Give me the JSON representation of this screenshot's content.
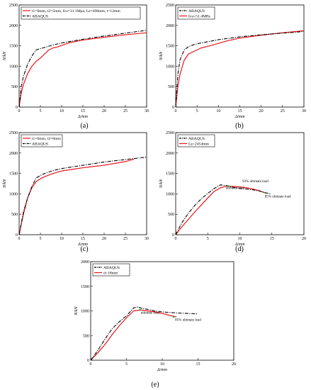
{
  "colors": {
    "experiment": "#e8141a",
    "abaqus": "#000000",
    "marker": "#1aa84a"
  },
  "chart_data": [
    {
      "caption": "(a)",
      "type": "line",
      "xlabel": "Δ/mm",
      "ylabel": "N/kN",
      "xlim": [
        0,
        30
      ],
      "ylim": [
        0,
        2500
      ],
      "xticks": [
        "0",
        "5",
        "10",
        "15",
        "20",
        "25",
        "30"
      ],
      "yticks": [
        "0",
        "500",
        "1000",
        "1500",
        "2000",
        "2500"
      ],
      "legend_position": "top-left",
      "legend": [
        "t1=6mm, t2=5mm, fcu=31.1Mpa, Le=490mm, t=12mm",
        "ABAQUS"
      ],
      "annotations": [],
      "series": [
        {
          "name": "t1=6mm, t2=5mm, fcu=31.1Mpa, Le=490mm, t=12mm",
          "style": "solid",
          "x": [
            0,
            0.5,
            1,
            2,
            3,
            4,
            5,
            6,
            7,
            8,
            9,
            10,
            12,
            15,
            20,
            25,
            30
          ],
          "y": [
            0,
            350,
            550,
            820,
            1000,
            1120,
            1200,
            1300,
            1400,
            1450,
            1470,
            1510,
            1580,
            1640,
            1710,
            1770,
            1820
          ]
        },
        {
          "name": "ABAQUS",
          "style": "dashdot",
          "x": [
            0,
            0.5,
            1,
            2,
            3,
            4,
            5,
            6,
            8,
            10,
            15,
            20,
            25,
            30
          ],
          "y": [
            0,
            500,
            750,
            1050,
            1250,
            1400,
            1430,
            1460,
            1520,
            1570,
            1660,
            1740,
            1810,
            1880
          ]
        }
      ]
    },
    {
      "caption": "(b)",
      "type": "line",
      "xlabel": "Δ/mm",
      "ylabel": "N/kN",
      "xlim": [
        0,
        30
      ],
      "ylim": [
        0,
        2500
      ],
      "xticks": [
        "0",
        "5",
        "10",
        "15",
        "20",
        "25",
        "30"
      ],
      "yticks": [
        "0",
        "500",
        "1000",
        "1500",
        "2000",
        "2500"
      ],
      "legend_position": "top-left",
      "legend": [
        "ABAQUS",
        "fcu=51.4MPa"
      ],
      "annotations": [],
      "series": [
        {
          "name": "fcu=51.4MPa",
          "style": "solid",
          "x": [
            0,
            0.5,
            1,
            2,
            3,
            4,
            5,
            6,
            8,
            10,
            12,
            15,
            20,
            25,
            30
          ],
          "y": [
            0,
            500,
            800,
            1150,
            1300,
            1350,
            1400,
            1450,
            1500,
            1560,
            1620,
            1690,
            1760,
            1820,
            1870
          ]
        },
        {
          "name": "ABAQUS",
          "style": "dashdot",
          "x": [
            0,
            0.5,
            1,
            2,
            3,
            4,
            5,
            6,
            8,
            10,
            15,
            20,
            25,
            30
          ],
          "y": [
            0,
            800,
            1150,
            1400,
            1480,
            1520,
            1550,
            1570,
            1610,
            1650,
            1720,
            1770,
            1810,
            1850
          ]
        }
      ]
    },
    {
      "caption": "(c)",
      "type": "line",
      "xlabel": "Δ/mm",
      "ylabel": "N/kN",
      "xlim": [
        0,
        30
      ],
      "ylim": [
        0,
        2500
      ],
      "xticks": [
        "0",
        "5",
        "10",
        "15",
        "20",
        "25",
        "30"
      ],
      "yticks": [
        "0",
        "500",
        "1000",
        "1500",
        "2000",
        "2500"
      ],
      "legend_position": "top-left",
      "legend": [
        "t1=6mm, t2=8mm",
        "ABAQUS"
      ],
      "annotations": [],
      "series": [
        {
          "name": "t1=6mm, t2=8mm",
          "style": "solid",
          "x": [
            0,
            1,
            2,
            3,
            4,
            5,
            6,
            8,
            10,
            15,
            20,
            25,
            27
          ],
          "y": [
            0,
            500,
            900,
            1150,
            1300,
            1370,
            1420,
            1500,
            1560,
            1640,
            1700,
            1790,
            1850
          ]
        },
        {
          "name": "ABAQUS",
          "style": "dashdot",
          "x": [
            0,
            1,
            2,
            3,
            4,
            5,
            6,
            8,
            10,
            15,
            20,
            25,
            30
          ],
          "y": [
            0,
            550,
            900,
            1180,
            1390,
            1450,
            1500,
            1570,
            1620,
            1700,
            1780,
            1840,
            1900
          ]
        }
      ]
    },
    {
      "caption": "(d)",
      "type": "line",
      "xlabel": "Δ/mm",
      "ylabel": "N/kN",
      "xlim": [
        0,
        20
      ],
      "ylim": [
        0,
        2500
      ],
      "xticks": [
        "0",
        "5",
        "10",
        "15",
        "20"
      ],
      "yticks": [
        "0",
        "500",
        "1000",
        "1500",
        "2000",
        "2500"
      ],
      "legend_position": "top-left",
      "legend": [
        "ABAQUS",
        "Le=2454mm"
      ],
      "annotations": [
        {
          "text": "93% ultimate load",
          "x": 10.4,
          "y": 1285
        },
        {
          "text": "ultimate load",
          "x": 7.8,
          "y": 1120
        },
        {
          "text": "85% ultimate load",
          "x": 13.9,
          "y": 910
        }
      ],
      "markers": [
        {
          "x": 8.2,
          "y": 1190
        },
        {
          "x": 14.1,
          "y": 1020
        }
      ],
      "series": [
        {
          "name": "Le=2454mm",
          "style": "solid",
          "x": [
            0,
            1,
            2,
            3,
            4,
            5,
            6,
            7,
            8,
            9,
            10,
            11,
            12,
            13,
            14
          ],
          "y": [
            0,
            200,
            380,
            560,
            730,
            900,
            1060,
            1150,
            1190,
            1180,
            1170,
            1150,
            1120,
            1080,
            1020
          ]
        },
        {
          "name": "ABAQUS",
          "style": "dashdot",
          "x": [
            0,
            0.3,
            1,
            2,
            3,
            4,
            5,
            6,
            7,
            8,
            9,
            10,
            11,
            12,
            13,
            14,
            14.8
          ],
          "y": [
            0,
            100,
            300,
            530,
            720,
            880,
            1010,
            1130,
            1220,
            1200,
            1160,
            1130,
            1120,
            1100,
            1070,
            1030,
            1000
          ]
        }
      ]
    },
    {
      "caption": "(e)",
      "type": "line",
      "xlabel": "Δ/mm",
      "ylabel": "N/kN",
      "xlim": [
        0,
        20
      ],
      "ylim": [
        0,
        2000
      ],
      "xticks": [
        "0",
        "5",
        "10",
        "15",
        "20"
      ],
      "yticks": [
        "0",
        "500",
        "1000",
        "1500",
        "2000"
      ],
      "legend_position": "top-left",
      "legend": [
        "ABAQUS",
        "d=18mm"
      ],
      "annotations": [
        {
          "text": "ultimate load",
          "x": 7.0,
          "y": 940
        },
        {
          "text": "85% ultimate load",
          "x": 11.8,
          "y": 800
        }
      ],
      "markers": [
        {
          "x": 6.9,
          "y": 1020
        },
        {
          "x": 11.6,
          "y": 880
        }
      ],
      "series": [
        {
          "name": "d=18mm",
          "style": "solid",
          "x": [
            0,
            1,
            2,
            3,
            4,
            5,
            6,
            7,
            8,
            9,
            10,
            11,
            12
          ],
          "y": [
            0,
            150,
            320,
            520,
            700,
            860,
            1000,
            1020,
            1000,
            980,
            950,
            910,
            880
          ]
        },
        {
          "name": "ABAQUS",
          "style": "dashdot",
          "x": [
            0,
            1,
            2,
            3,
            4,
            5,
            6,
            6.5,
            7,
            8,
            9,
            10,
            12,
            15
          ],
          "y": [
            0,
            200,
            430,
            640,
            780,
            900,
            1060,
            1080,
            1060,
            1030,
            1000,
            980,
            960,
            940
          ]
        }
      ]
    }
  ]
}
